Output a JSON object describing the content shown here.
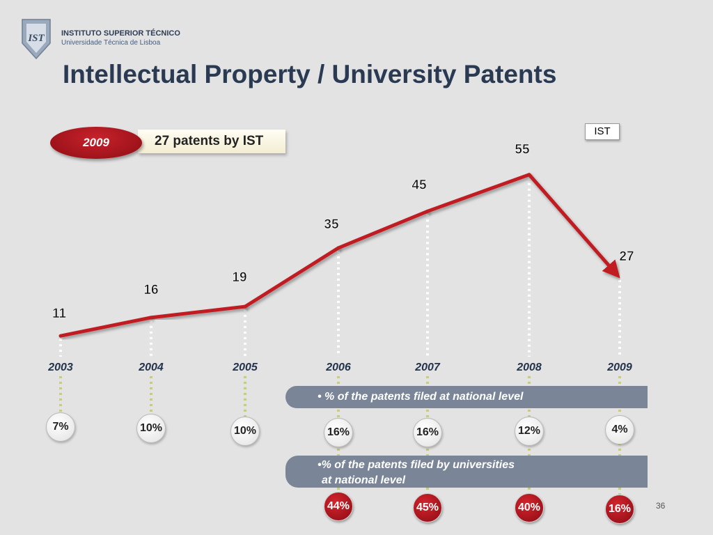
{
  "header": {
    "institution": "INSTITUTO SUPERIOR TÉCNICO",
    "subtitle": "Universidade Técnica de Lisboa",
    "logo_text": "IST"
  },
  "title": "Intellectual Property / University Patents",
  "highlight": {
    "year": "2009",
    "text": "27 patents by IST"
  },
  "colors": {
    "line": "#c01c24",
    "accent_red": "#b3141c",
    "band": "#7a8698",
    "title": "#2a3a52"
  },
  "chart_data": {
    "type": "line",
    "categories": [
      "2003",
      "2004",
      "2005",
      "2006",
      "2007",
      "2008",
      "2009"
    ],
    "series": [
      {
        "name": "IST",
        "values": [
          11,
          16,
          19,
          35,
          45,
          55,
          27
        ]
      }
    ],
    "value_labels": [
      "11",
      "16",
      "19",
      "35",
      "45",
      "55",
      "27"
    ],
    "legend": "top-right",
    "ylim": [
      0,
      60
    ],
    "grid": false
  },
  "national_level": {
    "label": "• % of the patents filed at national level",
    "values": [
      "7",
      "10",
      "10",
      "16",
      "16",
      "12",
      "4"
    ],
    "unit": "%"
  },
  "universities_level": {
    "label_line1": "•% of the patents filed by universities",
    "label_line2": "at national level",
    "years": [
      "2006",
      "2007",
      "2008",
      "2009"
    ],
    "values": [
      "44",
      "45",
      "40",
      "16"
    ],
    "unit": "%"
  },
  "page_number": "36"
}
